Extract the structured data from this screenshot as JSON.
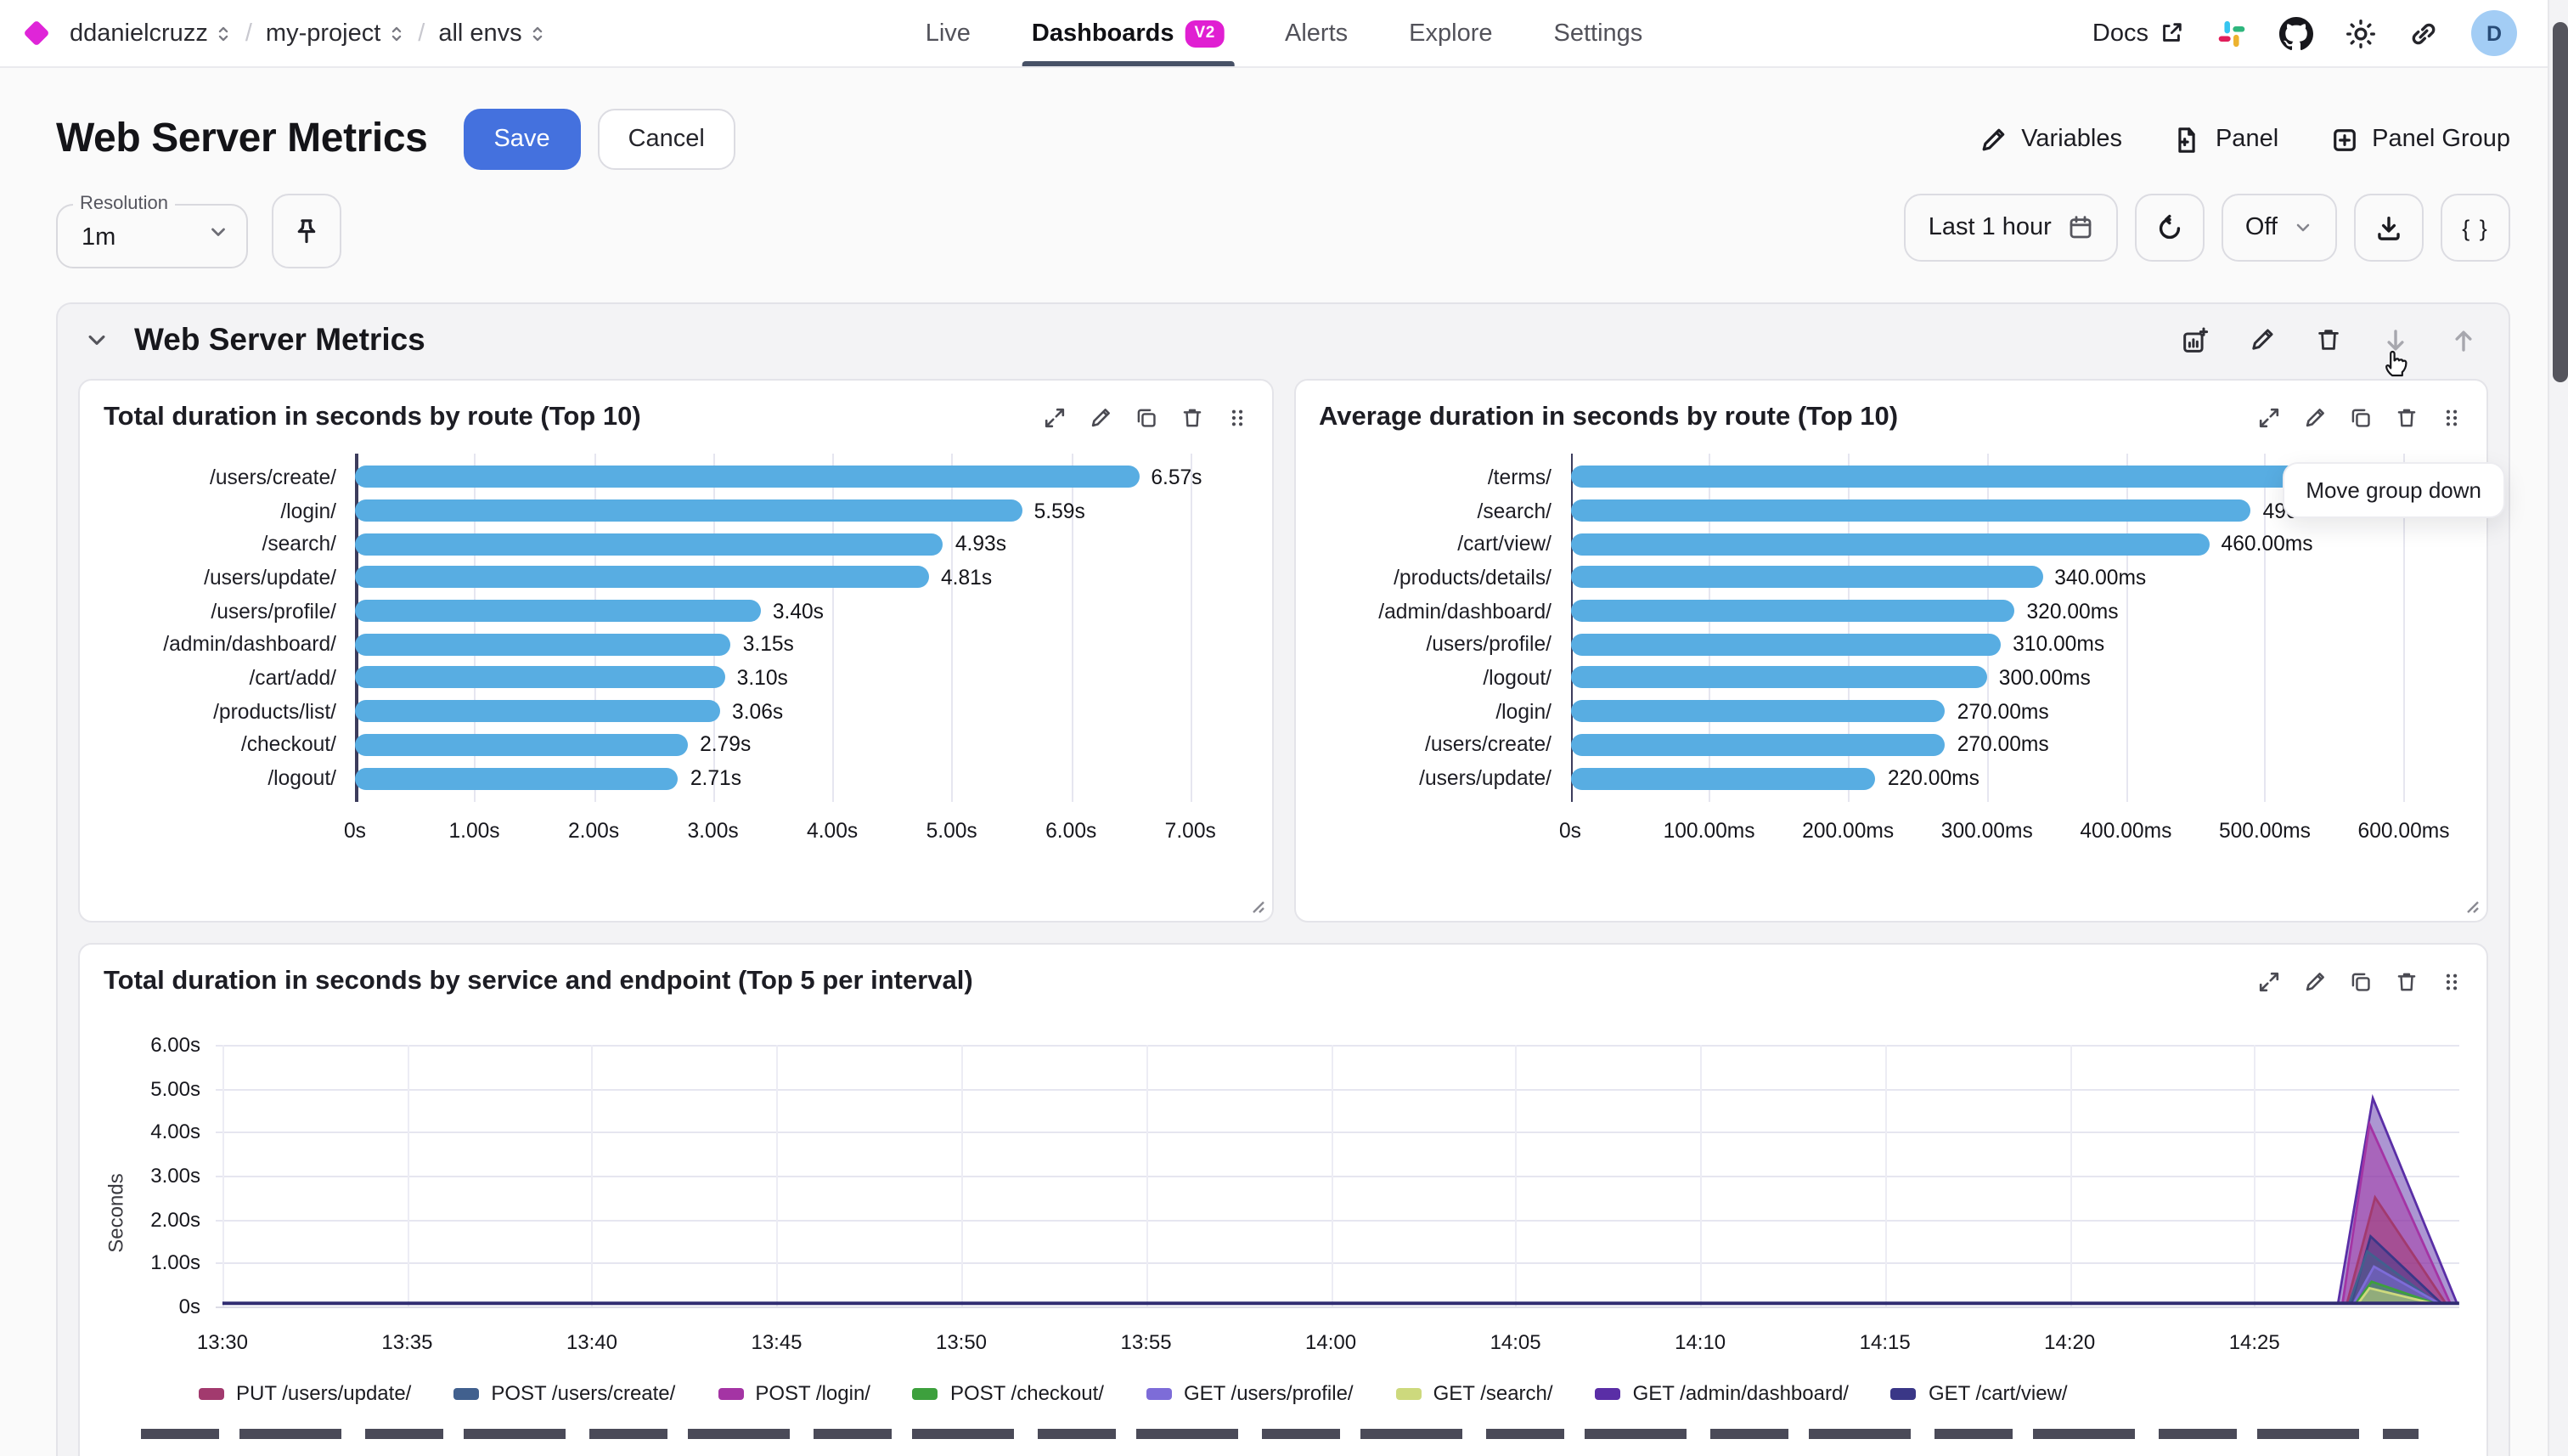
{
  "topbar": {
    "breadcrumb": [
      {
        "label": "ddanielcruzz"
      },
      {
        "label": "my-project"
      },
      {
        "label": "all envs"
      }
    ],
    "tabs": [
      {
        "label": "Live",
        "active": false
      },
      {
        "label": "Dashboards",
        "active": true,
        "badge": "V2"
      },
      {
        "label": "Alerts",
        "active": false
      },
      {
        "label": "Explore",
        "active": false
      },
      {
        "label": "Settings",
        "active": false
      }
    ],
    "docs_label": "Docs",
    "avatar_initial": "D"
  },
  "header": {
    "title": "Web Server Metrics",
    "save_label": "Save",
    "cancel_label": "Cancel",
    "variables_label": "Variables",
    "panel_label": "Panel",
    "panel_group_label": "Panel Group"
  },
  "controls": {
    "resolution_label": "Resolution",
    "resolution_value": "1m",
    "time_range": "Last 1 hour",
    "auto_refresh": "Off",
    "code_button": "{ }",
    "tooltip": "Move group down"
  },
  "group": {
    "title": "Web Server Metrics"
  },
  "colors": {
    "accent_blue": "#4471de",
    "brand_magenta": "#e01fd2",
    "bar_blue": "#58ade2",
    "baseline_indigo": "#312d72"
  },
  "icons": {
    "logo": "diamond",
    "breadcrumb-select": "up-down-chevrons",
    "external": "arrow-out-of-box",
    "community": "slack",
    "source": "github",
    "theme": "sun",
    "share": "link-chain",
    "variables": "pencil",
    "panel": "file-plus",
    "panel-group": "square-plus",
    "pin": "pushpin",
    "time-range": "calendar",
    "refresh": "rotate-ccw",
    "export": "download",
    "code": "braces",
    "collapse": "chevron-down",
    "add-panel": "chart-plus",
    "edit": "pencil",
    "delete": "trash",
    "move-down": "arrow-down",
    "move-up": "arrow-up",
    "expand": "diagonal-arrows",
    "duplicate": "copy",
    "drag": "six-dots",
    "cursor": "hand-pointer"
  },
  "chart_data": [
    {
      "type": "bar",
      "orientation": "horizontal",
      "title": "Total duration in seconds by route (Top 10)",
      "categories": [
        "/users/create/",
        "/login/",
        "/search/",
        "/users/update/",
        "/users/profile/",
        "/admin/dashboard/",
        "/cart/add/",
        "/products/list/",
        "/checkout/",
        "/logout/"
      ],
      "values": [
        6.57,
        5.59,
        4.93,
        4.81,
        3.4,
        3.15,
        3.1,
        3.06,
        2.79,
        2.71
      ],
      "value_labels": [
        "6.57s",
        "5.59s",
        "4.93s",
        "4.81s",
        "3.40s",
        "3.15s",
        "3.10s",
        "3.06s",
        "2.79s",
        "2.71s"
      ],
      "x_ticks": [
        "0s",
        "1.00s",
        "2.00s",
        "3.00s",
        "4.00s",
        "5.00s",
        "6.00s",
        "7.00s"
      ],
      "x_tick_values": [
        0,
        1,
        2,
        3,
        4,
        5,
        6,
        7
      ],
      "xmax": 7.45,
      "bar_color": "#58ade2",
      "grid": true
    },
    {
      "type": "bar",
      "orientation": "horizontal",
      "title": "Average duration in seconds by route (Top 10)",
      "categories": [
        "/terms/",
        "/search/",
        "/cart/view/",
        "/products/details/",
        "/admin/dashboard/",
        "/users/profile/",
        "/logout/",
        "/login/",
        "/users/create/",
        "/users/update/"
      ],
      "values": [
        550,
        490,
        460,
        340,
        320,
        310,
        300,
        270,
        270,
        220
      ],
      "value_labels": [
        "550.00ms",
        "490.00ms",
        "460.00ms",
        "340.00ms",
        "320.00ms",
        "310.00ms",
        "300.00ms",
        "270.00ms",
        "270.00ms",
        "220.00ms"
      ],
      "x_ticks": [
        "0s",
        "100.00ms",
        "200.00ms",
        "300.00ms",
        "400.00ms",
        "500.00ms",
        "600.00ms"
      ],
      "x_tick_values": [
        0,
        100,
        200,
        300,
        400,
        500,
        600
      ],
      "xmax": 640,
      "bar_color": "#58ade2",
      "grid": true
    },
    {
      "type": "area",
      "title": "Total duration in seconds by service and endpoint (Top 5 per interval)",
      "ylabel": "Seconds",
      "y_ticks": [
        "0s",
        "1.00s",
        "2.00s",
        "3.00s",
        "4.00s",
        "5.00s",
        "6.00s"
      ],
      "y_tick_values": [
        0,
        1,
        2,
        3,
        4,
        5,
        6
      ],
      "ylim": [
        0,
        6.45
      ],
      "x_ticks": [
        "13:30",
        "13:35",
        "13:40",
        "13:45",
        "13:50",
        "13:55",
        "14:00",
        "14:05",
        "14:10",
        "14:15",
        "14:20",
        "14:25"
      ],
      "baseline_value": 0,
      "note": "All series are ~0s across 13:30-14:25 with a burst of spikes at ~14:27-14:29",
      "series": [
        {
          "name": "PUT /users/update/",
          "color": "#a23a6e",
          "peak_value": 2.45,
          "spike": {
            "start_frac": 0.95,
            "peak_frac": 0.9625,
            "end_frac": 0.994
          }
        },
        {
          "name": "POST /users/create/",
          "color": "#41608e",
          "peak_value": 1.2,
          "spike": {
            "start_frac": 0.951,
            "peak_frac": 0.959,
            "end_frac": 0.99
          }
        },
        {
          "name": "POST /login/",
          "color": "#a434a4",
          "peak_value": 4.15,
          "spike": {
            "start_frac": 0.948,
            "peak_frac": 0.96,
            "end_frac": 0.996
          }
        },
        {
          "name": "POST /checkout/",
          "color": "#3da03d",
          "peak_value": 0.5,
          "spike": {
            "start_frac": 0.954,
            "peak_frac": 0.961,
            "end_frac": 0.989
          }
        },
        {
          "name": "GET /users/profile/",
          "color": "#7d6cd8",
          "peak_value": 0.85,
          "spike": {
            "start_frac": 0.953,
            "peak_frac": 0.962,
            "end_frac": 0.991
          }
        },
        {
          "name": "GET /search/",
          "color": "#cdd97d",
          "peak_value": 0.35,
          "spike": {
            "start_frac": 0.955,
            "peak_frac": 0.96,
            "end_frac": 0.988
          }
        },
        {
          "name": "GET /admin/dashboard/",
          "color": "#5a2ea6",
          "peak_value": 4.75,
          "spike": {
            "start_frac": 0.946,
            "peak_frac": 0.9615,
            "end_frac": 0.999
          }
        },
        {
          "name": "GET /cart/view/",
          "color": "#3a3787",
          "peak_value": 1.55,
          "spike": {
            "start_frac": 0.952,
            "peak_frac": 0.9605,
            "end_frac": 0.992
          }
        }
      ],
      "legend_position": "bottom"
    }
  ]
}
